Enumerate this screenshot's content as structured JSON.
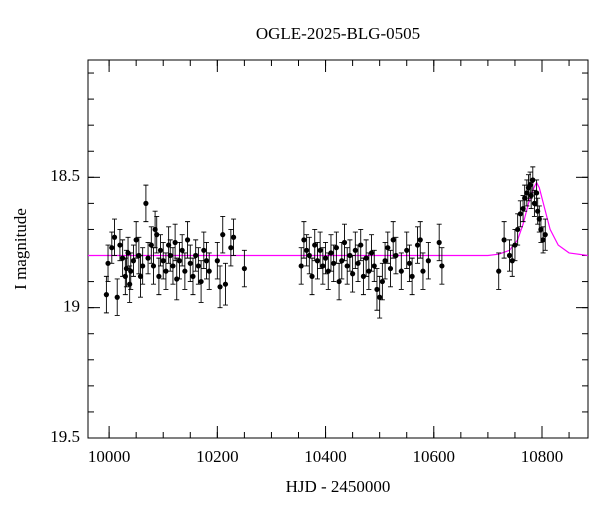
{
  "chart_data": {
    "type": "scatter",
    "title": "OGLE-2025-BLG-0505",
    "x_label": "HJD - 2450000",
    "y_label": "I magnitude",
    "xlim": [
      9961,
      10885
    ],
    "ylim": [
      19.5,
      18.05
    ],
    "xticks": [
      10000,
      10200,
      10400,
      10600,
      10800
    ],
    "yticks": [
      18.5,
      19,
      19.5
    ],
    "x_minor_ticks": [
      10000,
      10050,
      10100,
      10150,
      10200,
      10250,
      10300,
      10350,
      10400,
      10450,
      10500,
      10550,
      10600,
      10650,
      10700,
      10750,
      10800,
      10850
    ],
    "y_minor_ticks": [
      18.1,
      18.2,
      18.3,
      18.4,
      18.5,
      18.6,
      18.7,
      18.8,
      18.9,
      19,
      19.1,
      19.2,
      19.3,
      19.4
    ],
    "series": [
      {
        "style": "errorbar",
        "color": "#000000",
        "x": [
          9995,
          9998,
          10005,
          10010,
          10015,
          10020,
          10025,
          10030,
          10032,
          10035,
          10038,
          10040,
          10045,
          10050,
          10055,
          10058,
          10062,
          10068,
          10072,
          10078,
          10082,
          10085,
          10088,
          10092,
          10095,
          10100,
          10105,
          10110,
          10113,
          10118,
          10122,
          10125,
          10130,
          10135,
          10140,
          10145,
          10150,
          10155,
          10160,
          10165,
          10170,
          10175,
          10180,
          10185,
          10200,
          10205,
          10210,
          10215,
          10225,
          10230,
          10250,
          10355,
          10360,
          10365,
          10370,
          10375,
          10380,
          10385,
          10390,
          10395,
          10400,
          10405,
          10410,
          10415,
          10420,
          10425,
          10430,
          10435,
          10440,
          10445,
          10450,
          10455,
          10460,
          10465,
          10470,
          10475,
          10480,
          10485,
          10490,
          10495,
          10500,
          10505,
          10510,
          10515,
          10520,
          10525,
          10530,
          10540,
          10550,
          10555,
          10560,
          10570,
          10575,
          10580,
          10590,
          10610,
          10615,
          10720,
          10730,
          10740,
          10745,
          10750,
          10755,
          10760,
          10765,
          10768,
          10772,
          10775,
          10778,
          10780,
          10783,
          10786,
          10790,
          10792,
          10795,
          10798,
          10802,
          10806
        ],
        "values": [
          18.95,
          18.83,
          18.77,
          18.73,
          18.96,
          18.76,
          18.81,
          18.88,
          18.85,
          18.79,
          18.91,
          18.86,
          18.82,
          18.74,
          18.8,
          18.88,
          18.84,
          18.6,
          18.81,
          18.76,
          18.84,
          18.7,
          18.72,
          18.88,
          18.78,
          18.82,
          18.86,
          18.76,
          18.8,
          18.84,
          18.75,
          18.89,
          18.82,
          18.78,
          18.86,
          18.74,
          18.83,
          18.88,
          18.8,
          18.84,
          18.9,
          18.78,
          18.82,
          18.86,
          18.82,
          18.92,
          18.72,
          18.91,
          18.77,
          18.73,
          18.85,
          18.84,
          18.74,
          18.78,
          18.8,
          18.88,
          18.76,
          18.82,
          18.78,
          18.84,
          18.81,
          18.86,
          18.79,
          18.83,
          18.77,
          18.9,
          18.82,
          18.75,
          18.84,
          18.8,
          18.87,
          18.78,
          18.83,
          18.76,
          18.88,
          18.81,
          18.86,
          18.79,
          18.84,
          18.93,
          18.96,
          18.9,
          18.82,
          18.77,
          18.85,
          18.74,
          18.8,
          18.86,
          18.78,
          18.83,
          18.88,
          18.76,
          18.74,
          18.86,
          18.82,
          18.75,
          18.84,
          18.86,
          18.74,
          18.8,
          18.82,
          18.76,
          18.7,
          18.64,
          18.62,
          18.58,
          18.56,
          18.54,
          18.53,
          18.57,
          18.51,
          18.6,
          18.56,
          18.63,
          18.66,
          18.7,
          18.74,
          18.72
        ],
        "errors": [
          0.07,
          0.07,
          0.06,
          0.07,
          0.07,
          0.06,
          0.07,
          0.07,
          0.07,
          0.06,
          0.07,
          0.07,
          0.06,
          0.07,
          0.07,
          0.08,
          0.07,
          0.07,
          0.06,
          0.07,
          0.07,
          0.07,
          0.07,
          0.07,
          0.06,
          0.07,
          0.07,
          0.07,
          0.06,
          0.07,
          0.07,
          0.08,
          0.07,
          0.06,
          0.07,
          0.07,
          0.07,
          0.07,
          0.06,
          0.07,
          0.08,
          0.07,
          0.07,
          0.07,
          0.07,
          0.08,
          0.07,
          0.08,
          0.07,
          0.07,
          0.07,
          0.07,
          0.07,
          0.06,
          0.07,
          0.07,
          0.06,
          0.07,
          0.07,
          0.07,
          0.06,
          0.07,
          0.07,
          0.07,
          0.06,
          0.07,
          0.07,
          0.07,
          0.07,
          0.06,
          0.07,
          0.07,
          0.07,
          0.06,
          0.07,
          0.07,
          0.07,
          0.07,
          0.06,
          0.08,
          0.08,
          0.07,
          0.07,
          0.06,
          0.07,
          0.07,
          0.07,
          0.07,
          0.07,
          0.07,
          0.07,
          0.07,
          0.07,
          0.07,
          0.07,
          0.07,
          0.07,
          0.07,
          0.07,
          0.06,
          0.06,
          0.06,
          0.06,
          0.05,
          0.05,
          0.05,
          0.05,
          0.05,
          0.05,
          0.05,
          0.05,
          0.05,
          0.05,
          0.05,
          0.05,
          0.05,
          0.05,
          0.06
        ]
      },
      {
        "style": "line",
        "color": "#ff00ff",
        "x": [
          9961,
          10700,
          10720,
          10740,
          10755,
          10765,
          10775,
          10785,
          10790,
          10795,
          10805,
          10815,
          10830,
          10850,
          10885
        ],
        "values": [
          18.8,
          18.8,
          18.795,
          18.78,
          18.74,
          18.68,
          18.6,
          18.54,
          18.52,
          18.54,
          18.62,
          18.7,
          18.76,
          18.79,
          18.8
        ]
      }
    ]
  }
}
